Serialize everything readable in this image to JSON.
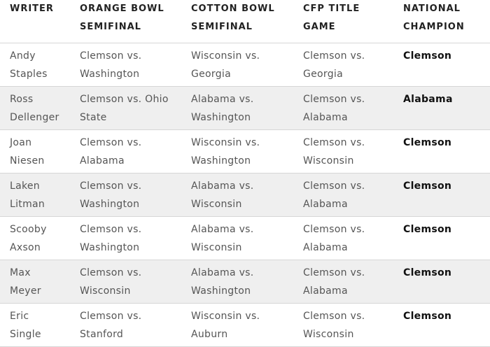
{
  "table": {
    "header": [
      "WRITER",
      "ORANGE BOWL SEMIFINAL",
      "COTTON BOWL SEMIFINAL",
      "CFP TITLE GAME",
      "NATIONAL CHAMPION"
    ],
    "rows": [
      [
        "Andy Staples",
        "Clemson vs. Washington",
        "Wisconsin vs. Georgia",
        "Clemson vs. Georgia",
        "Clemson"
      ],
      [
        "Ross Dellenger",
        "Clemson vs. Ohio State",
        "Alabama vs. Washington",
        "Clemson vs. Alabama",
        "Alabama"
      ],
      [
        "Joan Niesen",
        "Clemson vs. Alabama",
        "Wisconsin vs. Washington",
        "Clemson vs. Wisconsin",
        "Clemson"
      ],
      [
        "Laken Litman",
        "Clemson vs. Washington",
        "Alabama vs. Wisconsin",
        "Clemson vs. Alabama",
        "Clemson"
      ],
      [
        "Scooby Axson",
        "Clemson vs. Washington",
        "Alabama vs. Wisconsin",
        "Clemson vs. Alabama",
        "Clemson"
      ],
      [
        "Max Meyer",
        "Clemson vs. Wisconsin",
        "Alabama vs. Washington",
        "Clemson vs. Alabama",
        "Clemson"
      ],
      [
        "Eric Single",
        "Clemson vs. Stanford",
        "Wisconsin vs. Auburn",
        "Clemson vs. Wisconsin",
        "Clemson"
      ]
    ]
  }
}
